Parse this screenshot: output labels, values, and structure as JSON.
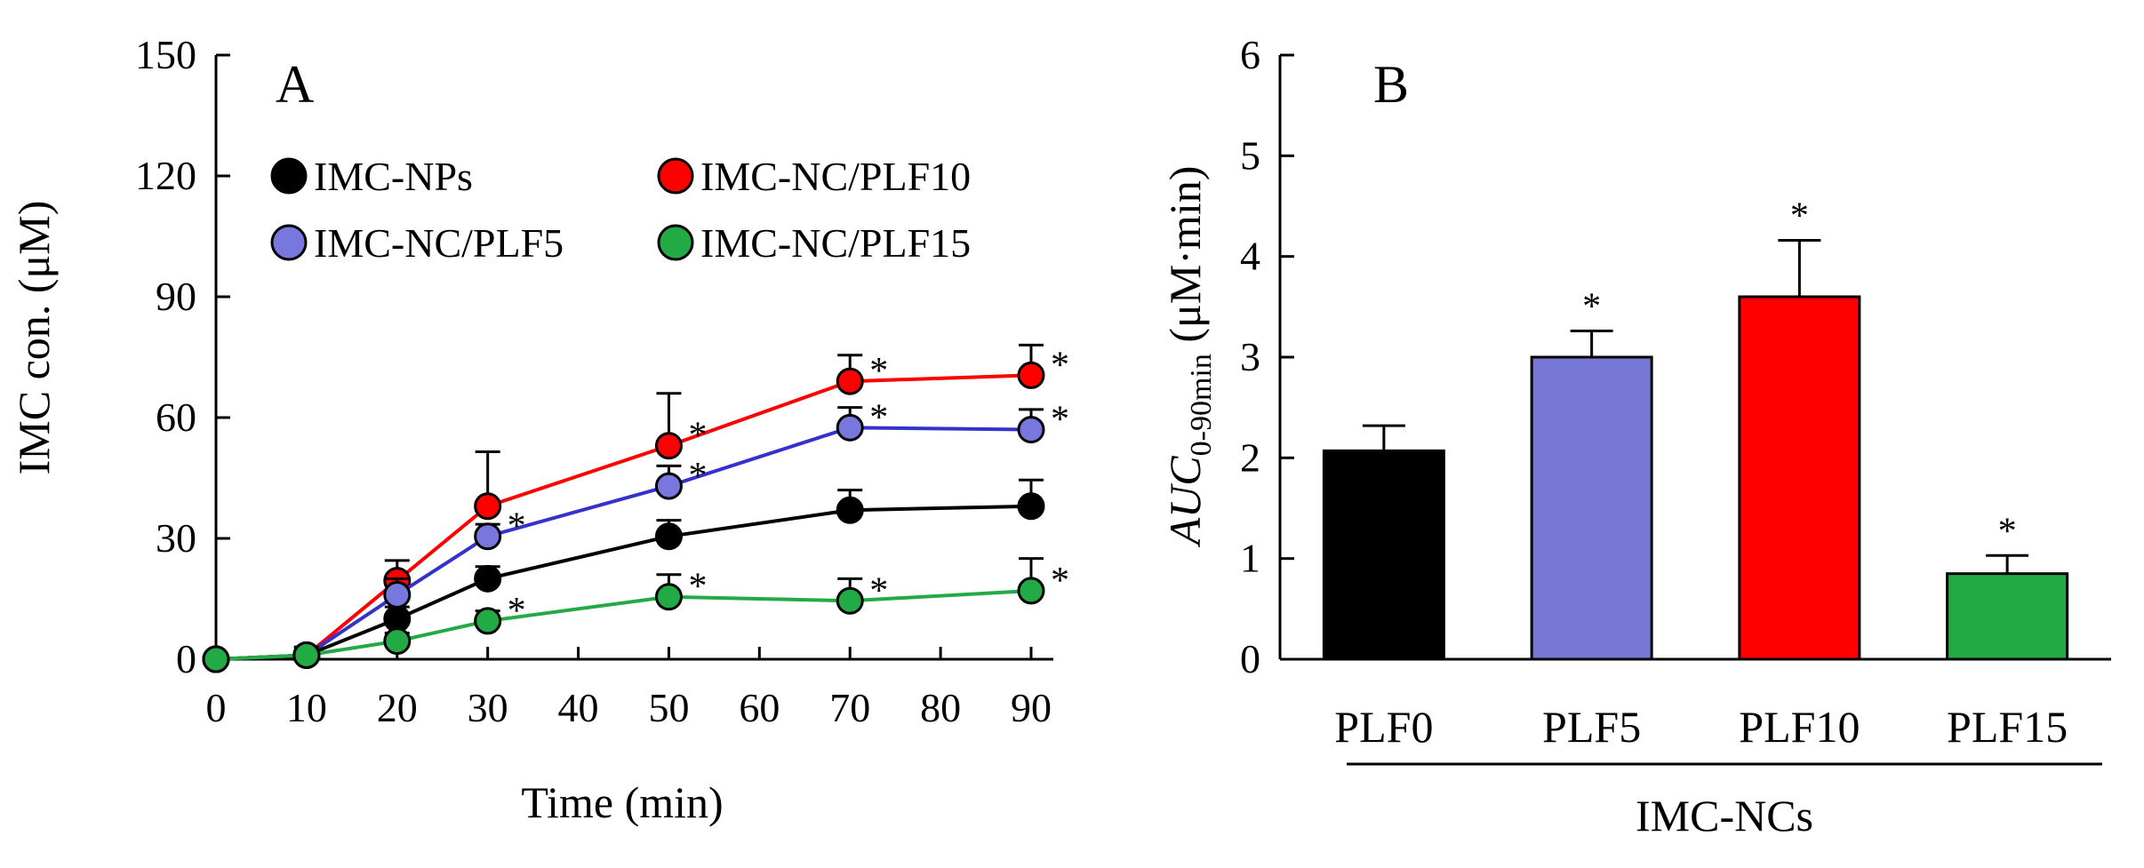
{
  "chart_data": [
    {
      "panel": "A",
      "type": "line",
      "xlabel": "Time (min)",
      "ylabel": "IMC con. (μM)",
      "xlim": [
        0,
        90
      ],
      "ylim": [
        0,
        150
      ],
      "x_ticks": [
        0,
        10,
        20,
        30,
        40,
        50,
        60,
        70,
        80,
        90
      ],
      "y_ticks": [
        0,
        30,
        60,
        90,
        120,
        150
      ],
      "x": [
        0,
        10,
        20,
        30,
        50,
        70,
        90
      ],
      "series": [
        {
          "name": "IMC-NPs",
          "color": "#000000",
          "line_color": "#000000",
          "values": [
            0,
            1,
            10,
            20,
            30.5,
            37,
            38
          ],
          "errors": [
            0,
            2,
            3,
            3,
            4,
            5,
            6.5
          ],
          "significant": [
            false,
            false,
            false,
            false,
            false,
            false,
            false
          ]
        },
        {
          "name": "IMC-NC/PLF10",
          "color": "#ff0000",
          "line_color": "#ff0000",
          "values": [
            0,
            1,
            19.5,
            38,
            53,
            69,
            70.5
          ],
          "errors": [
            0,
            2,
            5,
            13.5,
            13,
            6.5,
            7.5
          ],
          "significant": [
            false,
            false,
            false,
            false,
            true,
            true,
            true
          ]
        },
        {
          "name": "IMC-NC/PLF5",
          "color": "#7777dd",
          "line_color": "#3333cc",
          "values": [
            0,
            1,
            16,
            30.5,
            43,
            57.5,
            57
          ],
          "errors": [
            0,
            2,
            4,
            3,
            5,
            5,
            5
          ],
          "significant": [
            false,
            false,
            false,
            true,
            true,
            true,
            true
          ]
        },
        {
          "name": "IMC-NC/PLF15",
          "color": "#22aa44",
          "line_color": "#22aa44",
          "values": [
            0,
            1,
            4.5,
            9.5,
            15.5,
            14.5,
            17
          ],
          "errors": [
            0,
            2,
            2,
            2.5,
            5.5,
            5.5,
            8
          ],
          "significant": [
            false,
            false,
            false,
            true,
            true,
            true,
            true
          ]
        }
      ],
      "significance_marker": "*"
    },
    {
      "panel": "B",
      "type": "bar",
      "ylabel_main": "AUC",
      "ylabel_sub": "0-90min",
      "ylabel_unit": "(μM·min)",
      "ylim": [
        0,
        6
      ],
      "y_ticks": [
        0,
        1,
        2,
        3,
        4,
        5,
        6
      ],
      "categories": [
        "PLF0",
        "PLF5",
        "PLF10",
        "PLF15"
      ],
      "values": [
        2.07,
        3.0,
        3.6,
        0.85
      ],
      "errors": [
        0.25,
        0.26,
        0.56,
        0.18
      ],
      "colors": [
        "#000000",
        "#7777d6",
        "#ff0000",
        "#22aa44"
      ],
      "significant": [
        false,
        true,
        true,
        true
      ],
      "group_label": "IMC-NCs",
      "significance_marker": "*"
    }
  ]
}
